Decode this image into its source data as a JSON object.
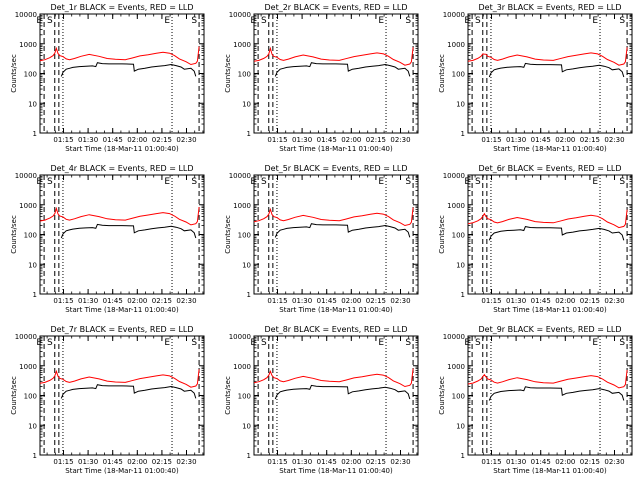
{
  "chart_data": {
    "type": "line",
    "colors": {
      "events": "#000000",
      "lld": "#ff0000",
      "axes": "#000000"
    },
    "shared": {
      "xlabel": "Start Time (18-Mar-11 01:00:40)",
      "ylabel": "Counts/sec",
      "x_tick_labels": [
        "01:15",
        "01:30",
        "01:45",
        "02:00",
        "02:15",
        "02:30"
      ],
      "x_tick_minutes": [
        14.333,
        29.333,
        44.333,
        59.333,
        74.333,
        89.333
      ],
      "x_range_minutes": [
        0,
        100
      ],
      "y_scale": "log",
      "y_range": [
        1,
        10000
      ],
      "y_tick_labels": [
        "1",
        "10",
        "100",
        "1000",
        "10000"
      ],
      "y_tick_values": [
        1,
        10,
        100,
        1000,
        10000
      ],
      "markers": [
        {
          "label": "E",
          "x": 2.5,
          "style": "dash"
        },
        {
          "label": "S",
          "x": 9.0,
          "style": "dash"
        },
        {
          "label": "",
          "x": 11.5,
          "style": "dash"
        },
        {
          "label": "",
          "x": 14.0,
          "style": "dot"
        },
        {
          "label": "E",
          "x": 80.5,
          "style": "dot"
        },
        {
          "label": "S",
          "x": 97.0,
          "style": "dash"
        }
      ]
    },
    "panels": [
      {
        "title": "Det_1r BLACK = Events, RED = LLD",
        "lld_scale": 1.0,
        "event_scale": 1.0,
        "lld_peak": 700
      },
      {
        "title": "Det_2r BLACK = Events, RED = LLD",
        "lld_scale": 0.95,
        "event_scale": 1.0,
        "lld_peak": 700
      },
      {
        "title": "Det_3r BLACK = Events, RED = LLD",
        "lld_scale": 0.95,
        "event_scale": 0.95,
        "lld_peak": 450
      },
      {
        "title": "Det_4r BLACK = Events, RED = LLD",
        "lld_scale": 1.05,
        "event_scale": 0.95,
        "lld_peak": 750
      },
      {
        "title": "Det_5r BLACK = Events, RED = LLD",
        "lld_scale": 1.0,
        "event_scale": 1.0,
        "lld_peak": 700
      },
      {
        "title": "Det_6r BLACK = Events, RED = LLD",
        "lld_scale": 0.85,
        "event_scale": 0.8,
        "lld_peak": 500
      },
      {
        "title": "Det_7r BLACK = Events, RED = LLD",
        "lld_scale": 0.95,
        "event_scale": 1.0,
        "lld_peak": 650
      },
      {
        "title": "Det_8r BLACK = Events, RED = LLD",
        "lld_scale": 1.0,
        "event_scale": 0.95,
        "lld_peak": 650
      },
      {
        "title": "Det_9r BLACK = Events, RED = LLD",
        "lld_scale": 0.9,
        "event_scale": 0.85,
        "lld_peak": 500
      }
    ],
    "lld_curve": {
      "x": [
        0,
        3,
        6,
        8,
        9,
        10,
        11,
        12,
        14,
        16,
        18,
        21,
        25,
        30,
        36,
        41,
        46,
        52,
        56,
        61,
        66,
        71,
        75,
        79,
        82,
        85,
        89,
        92,
        95,
        96,
        97
      ],
      "y": [
        270,
        290,
        340,
        400,
        480,
        560,
        470,
        400,
        370,
        310,
        290,
        320,
        380,
        440,
        380,
        320,
        300,
        290,
        330,
        390,
        430,
        480,
        520,
        480,
        400,
        310,
        250,
        200,
        220,
        260,
        800
      ]
    },
    "events_curve": {
      "x": [
        13,
        14,
        16,
        18,
        20,
        24,
        28,
        32,
        34,
        35,
        38,
        42,
        50,
        57,
        57.5,
        60,
        64,
        68,
        72,
        76,
        80,
        83,
        86,
        88,
        92,
        94,
        95
      ],
      "y": [
        80,
        110,
        140,
        150,
        160,
        170,
        175,
        180,
        170,
        230,
        215,
        210,
        210,
        205,
        120,
        140,
        150,
        165,
        175,
        185,
        200,
        185,
        165,
        140,
        150,
        120,
        80
      ]
    }
  }
}
